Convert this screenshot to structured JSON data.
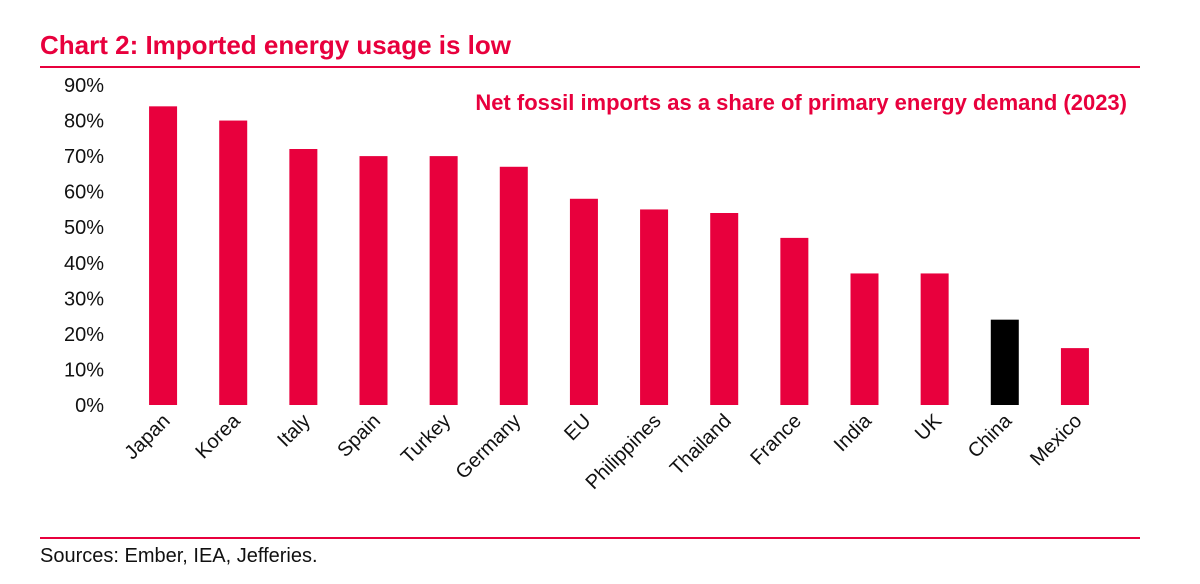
{
  "title": "Chart 2: Imported energy usage is low",
  "source": "Sources: Ember, IEA, Jefferies.",
  "colors": {
    "accent": "#e8003d",
    "highlight": "#000000",
    "text": "#111111"
  },
  "chart_data": {
    "type": "bar",
    "title": "Net fossil imports as a share of primary energy demand (2023)",
    "xlabel": "",
    "ylabel": "",
    "ylim": [
      0,
      90
    ],
    "yticks": [
      "0%",
      "10%",
      "20%",
      "30%",
      "40%",
      "50%",
      "60%",
      "70%",
      "80%",
      "90%"
    ],
    "categories": [
      "Japan",
      "Korea",
      "Italy",
      "Spain",
      "Turkey",
      "Germany",
      "EU",
      "Philippines",
      "Thailand",
      "France",
      "India",
      "UK",
      "China",
      "Mexico"
    ],
    "values": [
      84,
      80,
      72,
      70,
      70,
      67,
      58,
      55,
      54,
      47,
      37,
      37,
      24,
      16
    ],
    "highlight_category": "China",
    "grid": false,
    "legend": "none"
  }
}
